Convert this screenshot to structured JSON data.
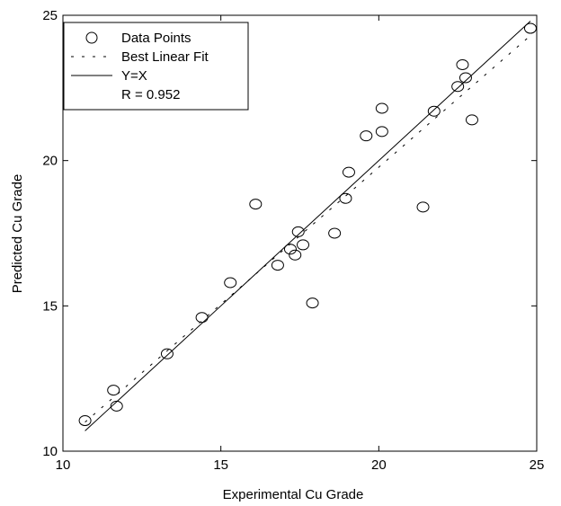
{
  "chart_data": {
    "type": "scatter",
    "xlabel": "Experimental Cu Grade",
    "ylabel": "Predicted Cu Grade",
    "xlim": [
      10,
      25
    ],
    "ylim": [
      10,
      25
    ],
    "xticks": [
      "10",
      "15",
      "20",
      "25"
    ],
    "yticks": [
      "10",
      "15",
      "20",
      "25"
    ],
    "grid": false,
    "legend_placement": "top-left",
    "legend": {
      "points_label": "Data Points",
      "fit_label": "Best Linear Fit",
      "identity_label": "Y=X",
      "r_text": "R = 0.952"
    },
    "series": [
      {
        "name": "Data Points",
        "marker": "open-circle",
        "x": [
          10.7,
          11.6,
          11.7,
          13.3,
          14.4,
          15.3,
          16.1,
          16.8,
          17.2,
          17.35,
          17.45,
          17.6,
          17.9,
          18.6,
          18.95,
          19.05,
          19.6,
          20.1,
          20.1,
          21.4,
          21.75,
          22.5,
          22.65,
          22.75,
          22.95,
          24.8
        ],
        "y": [
          11.05,
          12.1,
          11.55,
          13.35,
          14.6,
          15.8,
          18.5,
          16.4,
          16.95,
          16.75,
          17.55,
          17.1,
          15.1,
          17.5,
          18.7,
          19.6,
          20.85,
          21.0,
          21.8,
          18.4,
          21.7,
          22.55,
          23.3,
          22.85,
          21.4,
          24.55
        ]
      },
      {
        "name": "Best Linear Fit",
        "style": "dashed",
        "x": [
          10.7,
          24.8
        ],
        "y": [
          11.0,
          24.3
        ]
      },
      {
        "name": "Y=X",
        "style": "solid",
        "x": [
          10.7,
          24.8
        ],
        "y": [
          10.7,
          24.8
        ]
      }
    ]
  }
}
